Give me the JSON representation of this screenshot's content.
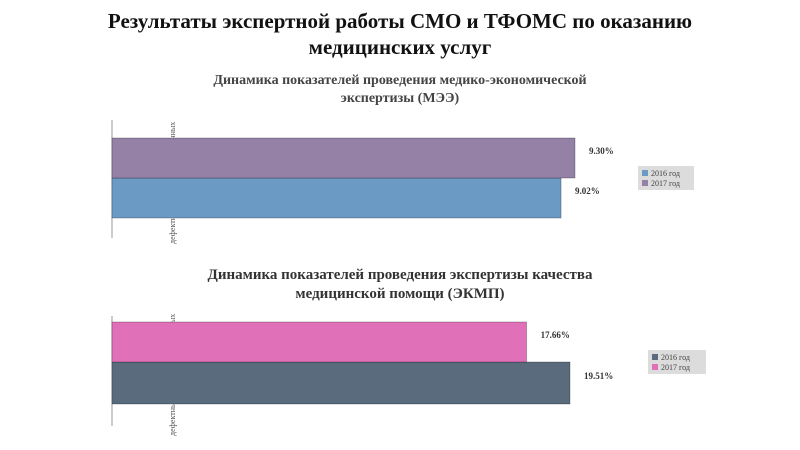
{
  "page": {
    "title_line1": "Результаты экспертной работы СМО и ТФОМС по оказанию",
    "title_line2": "медицинских услуг"
  },
  "chart_data": [
    {
      "type": "bar",
      "orientation": "horizontal",
      "title_line1": "Динамика показателей проведения медико-экономической",
      "title_line2": "экспертизы (МЭЭ)",
      "ylabel": "дефектных случаев от проверенных",
      "categories": [
        ""
      ],
      "series": [
        {
          "name": "2016 год",
          "values": [
            9.02
          ],
          "label": "9.02%",
          "color": "#6b9ac4"
        },
        {
          "name": "2017 год",
          "values": [
            9.3
          ],
          "label": "9.30%",
          "color": "#9580a6"
        }
      ],
      "legend_position": "right",
      "grid": false
    },
    {
      "type": "bar",
      "orientation": "horizontal",
      "title_line1": "Динамика показателей проведения экспертизы качества",
      "title_line2": "медицинской помощи (ЭКМП)",
      "ylabel": "дефектных случаев от проверенных",
      "categories": [
        ""
      ],
      "series": [
        {
          "name": "2016 год",
          "values": [
            19.51
          ],
          "label": "19.51%",
          "color": "#5a6b7d"
        },
        {
          "name": "2017 год",
          "values": [
            17.66
          ],
          "label": "17.66%",
          "color": "#e070b8"
        }
      ],
      "legend_position": "right",
      "grid": false
    }
  ]
}
